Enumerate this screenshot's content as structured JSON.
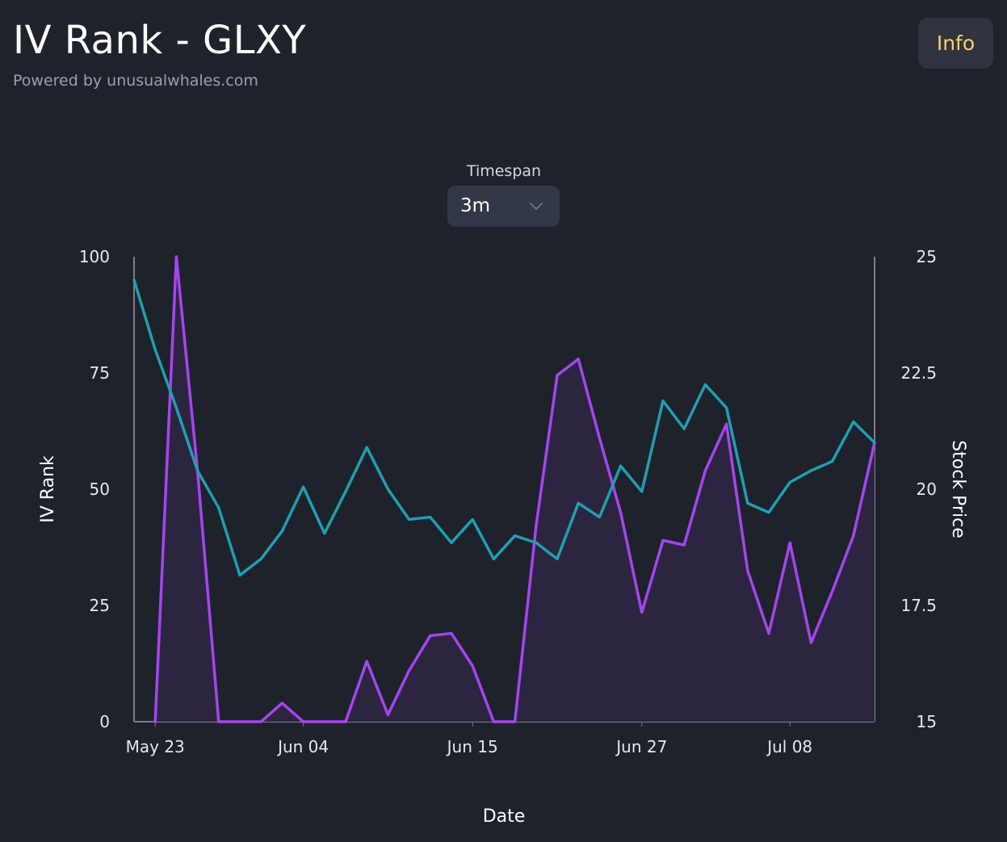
{
  "header": {
    "title": "IV Rank - GLXY",
    "subtitle": "Powered by unusualwhales.com",
    "info_label": "Info"
  },
  "timespan": {
    "label": "Timespan",
    "selected": "3m"
  },
  "colors": {
    "background": "#1e222b",
    "iv_rank": "#a545ee",
    "iv_rank_fill": "#2d2640",
    "stock_price": "#1f9fb2",
    "info_text": "#f5cf6e"
  },
  "icons": {
    "dropdown": "chevron-down-icon"
  },
  "chart_data": {
    "type": "line",
    "xlabel": "Date",
    "ylabel": "IV Rank",
    "y2label": "Stock Price",
    "ylim": [
      0,
      100
    ],
    "y2lim": [
      15,
      25
    ],
    "yticks": [
      "0",
      "25",
      "50",
      "75",
      "100"
    ],
    "y2ticks": [
      "15",
      "17.5",
      "20",
      "22.5",
      "25"
    ],
    "xtick_labels": [
      {
        "label": "May 23",
        "index": 1
      },
      {
        "label": "Jun 04",
        "index": 8
      },
      {
        "label": "Jun 15",
        "index": 16
      },
      {
        "label": "Jun 27",
        "index": 24
      },
      {
        "label": "Jul 08",
        "index": 31
      }
    ],
    "point_count": 36,
    "series": [
      {
        "name": "IV Rank",
        "axis": "left",
        "area": true,
        "values": [
          null,
          0,
          100,
          54,
          0,
          0,
          0,
          4,
          0,
          0,
          0,
          13,
          1.5,
          11,
          18.5,
          19,
          12,
          0,
          0,
          42,
          74.5,
          78,
          61,
          45,
          23.5,
          39,
          38,
          54,
          64,
          32.5,
          19,
          38.5,
          17,
          28,
          40,
          60
        ]
      },
      {
        "name": "Stock Price",
        "axis": "right",
        "values": [
          24.5,
          23.0,
          21.75,
          20.4,
          19.6,
          18.15,
          18.5,
          19.1,
          20.05,
          19.05,
          19.95,
          20.9,
          20.0,
          19.35,
          19.4,
          18.85,
          19.35,
          18.5,
          19.0,
          18.85,
          18.5,
          19.7,
          19.4,
          20.5,
          19.95,
          21.9,
          21.3,
          22.25,
          21.75,
          19.7,
          19.5,
          20.15,
          20.4,
          20.6,
          21.45,
          21.0
        ]
      }
    ]
  }
}
